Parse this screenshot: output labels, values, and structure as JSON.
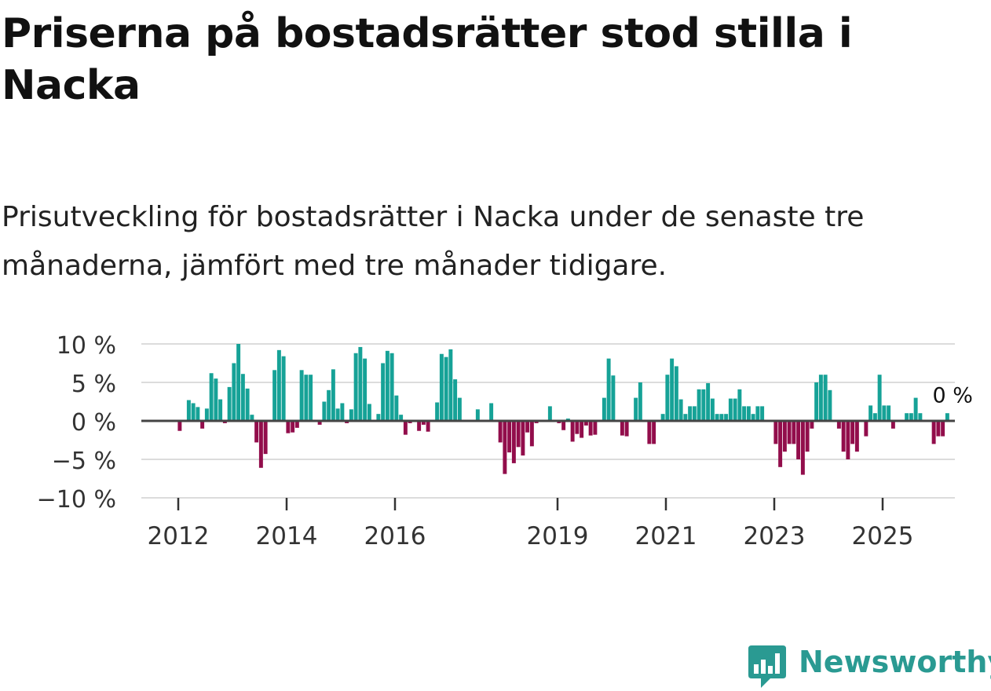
{
  "title": "Priserna på bostadsrätter stod stilla i Nacka",
  "subtitle": "Prisutveckling för bostadsrätter i Nacka under de senaste tre månaderna, jämfört med tre månader tidigare.",
  "brand": {
    "name": "Newsworthy",
    "logo_icon": "bar-chart-speech-bubble-icon"
  },
  "colors": {
    "positive": "#16a297",
    "negative": "#920d4b",
    "grid": "#dcdcdc",
    "zero_line": "#444444",
    "brand": "#2a9a92"
  },
  "chart_data": {
    "type": "bar",
    "title": "Priserna på bostadsrätter stod stilla i Nacka",
    "ylabel": "",
    "xlabel": "",
    "unit": "%",
    "ylim": [
      -10,
      10
    ],
    "yticks": [
      10,
      5,
      0,
      -5,
      -10
    ],
    "ytick_labels": [
      "10 %",
      "5 %",
      "0 %",
      "−5 %",
      "−10 %"
    ],
    "xticks": [
      {
        "year": 2012,
        "label": "2012"
      },
      {
        "year": 2014,
        "label": "2014"
      },
      {
        "year": 2016,
        "label": "2016"
      },
      {
        "year": 2019,
        "label": "2019"
      },
      {
        "year": 2021,
        "label": "2021"
      },
      {
        "year": 2023,
        "label": "2023"
      },
      {
        "year": 2025,
        "label": "2025"
      }
    ],
    "start": {
      "year": 2011,
      "month": 5
    },
    "last_label": "0 %",
    "values": [
      0,
      0,
      0,
      0,
      0,
      0,
      0,
      0,
      -1.3,
      0,
      2.7,
      2.3,
      1.8,
      -1,
      1.6,
      6.2,
      5.5,
      2.8,
      -0.3,
      4.4,
      7.5,
      10,
      6.1,
      4.2,
      0.8,
      -2.8,
      -6.1,
      -4.3,
      0,
      6.6,
      9.2,
      8.4,
      -1.6,
      -1.5,
      -0.9,
      6.6,
      6,
      6,
      0,
      -0.5,
      2.5,
      4,
      6.7,
      1.6,
      2.3,
      -0.3,
      1.5,
      8.8,
      9.6,
      8.1,
      2.2,
      0,
      0.9,
      7.5,
      9.1,
      8.8,
      3.3,
      0.8,
      -1.8,
      -0.3,
      0,
      -1.3,
      -0.5,
      -1.4,
      0,
      2.4,
      8.7,
      8.3,
      9.3,
      5.4,
      3,
      0,
      0,
      0,
      1.5,
      0,
      0,
      2.3,
      0,
      -2.8,
      -6.9,
      -4.1,
      -5.5,
      -3.4,
      -4.5,
      -1.5,
      -3.3,
      -0.3,
      0,
      0,
      1.9,
      0,
      -0.3,
      -1.2,
      0.3,
      -2.7,
      -1.7,
      -2.2,
      -0.6,
      -1.9,
      -1.8,
      0,
      3,
      8.1,
      5.9,
      0,
      -1.9,
      -2,
      0,
      3,
      5,
      0,
      -3,
      -3,
      0,
      0.9,
      6,
      8.1,
      7.1,
      2.8,
      0.9,
      1.9,
      1.9,
      4.1,
      4.1,
      4.9,
      2.9,
      0.9,
      0.9,
      0.9,
      2.9,
      2.9,
      4.1,
      1.9,
      1.9,
      0.9,
      1.9,
      1.9,
      0,
      0,
      -3,
      -6,
      -4,
      -3,
      -3,
      -5,
      -7,
      -4,
      -1,
      5,
      6,
      6,
      4,
      0,
      -1,
      -4,
      -5,
      -3,
      -4,
      0,
      -2,
      2,
      1,
      6,
      2,
      2,
      -1,
      0,
      0,
      1,
      1,
      3,
      1,
      0,
      0,
      -3,
      -2,
      -2,
      1,
      0
    ]
  }
}
